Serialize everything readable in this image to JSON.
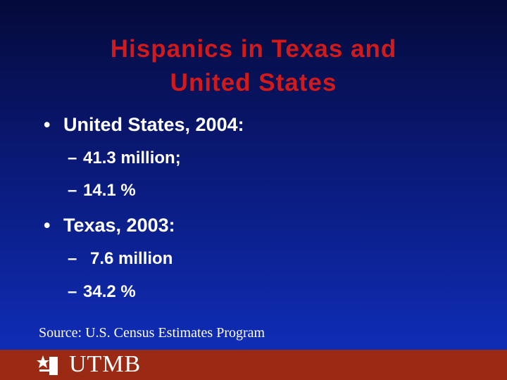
{
  "title": "Hispanics in Texas and United States",
  "bullets": [
    {
      "text": "United States, 2004:",
      "items": [
        "41.3 million;",
        "14.1 %"
      ]
    },
    {
      "text": "Texas, 2003:",
      "items": [
        "7.6 million",
        "34.2 %"
      ]
    }
  ],
  "source": "Source: U.S. Census Estimates Program",
  "footer": {
    "logo": "UTMB"
  }
}
